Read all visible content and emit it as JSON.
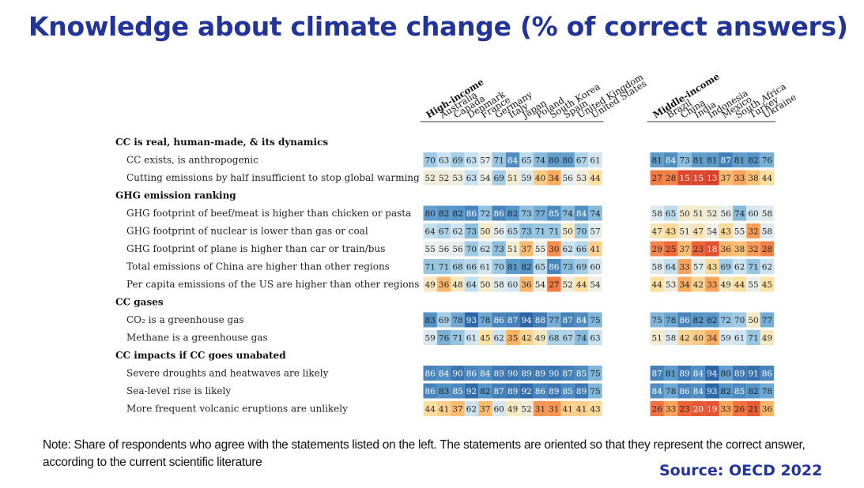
{
  "title": "Knowledge about climate change (% of correct answers)",
  "note": "Note: Share of respondents who agree with the statements listed on the left. The statements are oriented so that they represent the correct answer, according to the current scientific literature",
  "source": "Source: OECD 2022",
  "chart_data": {
    "type": "heatmap",
    "group_headers": [
      "High-income",
      "Middle-income"
    ],
    "high_income_countries": [
      "Australia",
      "Canada",
      "Denmark",
      "France",
      "Germany",
      "Italy",
      "Japan",
      "Poland",
      "South Korea",
      "Spain",
      "United Kingdom",
      "United States"
    ],
    "middle_income_countries": [
      "Brazil",
      "China",
      "India",
      "Indonesia",
      "Mexico",
      "South Africa",
      "Turkey",
      "Ukraine"
    ],
    "sections": [
      {
        "heading": "CC is real, human-made, & its dynamics",
        "rows": [
          {
            "label": "CC exists, is anthropogenic",
            "high": [
              70,
              63,
              69,
              63,
              57,
              71,
              84,
              65,
              74,
              80,
              80,
              67,
              61
            ],
            "middle": [
              81,
              84,
              73,
              81,
              81,
              87,
              81,
              82,
              76
            ]
          },
          {
            "label": "Cutting emissions by half insufficient to stop global warming",
            "high": [
              52,
              52,
              53,
              63,
              54,
              69,
              51,
              59,
              40,
              34,
              56,
              53,
              44
            ],
            "middle": [
              27,
              28,
              15,
              15,
              13,
              37,
              33,
              38,
              44
            ]
          }
        ]
      },
      {
        "heading": "GHG emission ranking",
        "rows": [
          {
            "label": "GHG footprint of beef/meat is higher than chicken or pasta",
            "high": [
              80,
              82,
              82,
              86,
              72,
              86,
              82,
              73,
              77,
              85,
              74,
              84,
              74
            ],
            "middle": [
              58,
              65,
              50,
              51,
              52,
              56,
              74,
              60,
              58
            ]
          },
          {
            "label": "GHG footprint of nuclear is lower than gas or coal",
            "high": [
              64,
              67,
              62,
              73,
              50,
              56,
              65,
              73,
              71,
              71,
              50,
              70,
              57
            ],
            "middle": [
              47,
              43,
              51,
              47,
              54,
              43,
              55,
              32,
              58
            ]
          },
          {
            "label": "GHG footprint of plane is higher than car or train/bus",
            "high": [
              55,
              56,
              56,
              70,
              62,
              73,
              51,
              37,
              55,
              30,
              62,
              66,
              41
            ],
            "middle": [
              29,
              25,
              37,
              23,
              18,
              36,
              38,
              32,
              28
            ]
          },
          {
            "label": "Total emissions of China are higher than other regions",
            "high": [
              71,
              71,
              68,
              66,
              61,
              70,
              81,
              82,
              65,
              86,
              73,
              69,
              60
            ],
            "middle": [
              58,
              64,
              33,
              57,
              43,
              69,
              62,
              71,
              62
            ]
          },
          {
            "label": "Per capita emissions of the US are higher than other regions",
            "high": [
              49,
              36,
              48,
              64,
              50,
              58,
              60,
              36,
              54,
              27,
              52,
              44,
              54
            ],
            "middle": [
              44,
              53,
              34,
              42,
              33,
              49,
              44,
              55,
              45
            ]
          }
        ]
      },
      {
        "heading": "CC gases",
        "rows": [
          {
            "label": "CO₂ is a greenhouse gas",
            "high": [
              83,
              69,
              78,
              93,
              78,
              86,
              87,
              94,
              88,
              77,
              87,
              84,
              75
            ],
            "middle": [
              75,
              78,
              86,
              82,
              82,
              72,
              70,
              50,
              77
            ]
          },
          {
            "label": "Methane is a greenhouse gas",
            "high": [
              59,
              76,
              71,
              61,
              45,
              62,
              35,
              42,
              49,
              68,
              67,
              74,
              63
            ],
            "middle": [
              51,
              58,
              42,
              40,
              34,
              59,
              61,
              71,
              49
            ]
          }
        ]
      },
      {
        "heading": "CC impacts if CC goes unabated",
        "rows": [
          {
            "label": "Severe droughts and heatwaves are likely",
            "high": [
              86,
              84,
              90,
              86,
              84,
              89,
              90,
              89,
              89,
              90,
              87,
              85,
              75
            ],
            "middle": [
              87,
              81,
              89,
              84,
              94,
              80,
              89,
              91,
              86
            ]
          },
          {
            "label": "Sea-level rise is likely",
            "high": [
              86,
              83,
              85,
              92,
              82,
              87,
              89,
              92,
              86,
              89,
              85,
              89,
              75
            ],
            "middle": [
              84,
              78,
              86,
              84,
              93,
              82,
              85,
              82,
              78
            ]
          },
          {
            "label": "More frequent volcanic eruptions are unlikely",
            "high": [
              44,
              41,
              37,
              62,
              37,
              60,
              49,
              52,
              31,
              31,
              41,
              41,
              43
            ],
            "middle": [
              26,
              33,
              23,
              20,
              19,
              33,
              26,
              21,
              36
            ]
          }
        ]
      }
    ]
  }
}
